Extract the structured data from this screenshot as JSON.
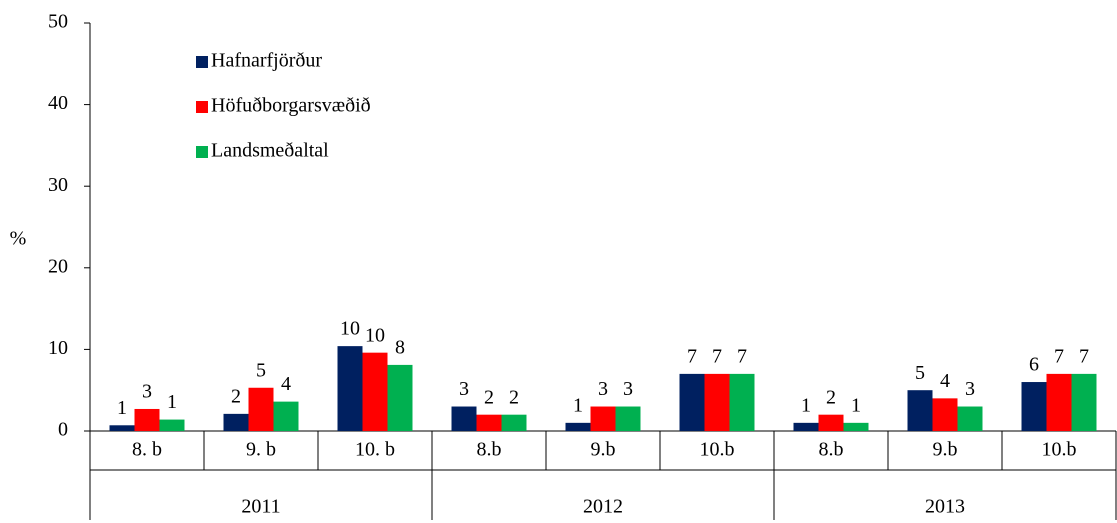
{
  "chart_data": {
    "type": "bar",
    "y_label": "%",
    "categories": [
      "8. b",
      "9. b",
      "10. b",
      "8.b",
      "9.b",
      "10.b",
      "8.b",
      "9.b",
      "10.b"
    ],
    "category_groups": [
      "2011",
      "2012",
      "2013"
    ],
    "series": [
      {
        "name": "Hafnarfjörður",
        "color": "#002060",
        "values": [
          0.7,
          2.1,
          10.4,
          3,
          1,
          7,
          1,
          5,
          6
        ],
        "value_labels": [
          "1",
          "2",
          "10",
          "3",
          "1",
          "7",
          "1",
          "5",
          "6"
        ]
      },
      {
        "name": "Höfuðborgarsvæðið",
        "color": "#ff0000",
        "values": [
          2.7,
          5.3,
          9.6,
          2,
          3,
          7,
          2,
          4,
          7
        ],
        "value_labels": [
          "3",
          "5",
          "10",
          "2",
          "3",
          "7",
          "2",
          "4",
          "7"
        ]
      },
      {
        "name": "Landsmeðaltal",
        "color": "#00b050",
        "values": [
          1.4,
          3.6,
          8.1,
          2,
          3,
          7,
          1,
          3,
          7
        ],
        "value_labels": [
          "1",
          "4",
          "8",
          "2",
          "3",
          "7",
          "1",
          "3",
          "7"
        ]
      }
    ],
    "ylim": [
      0,
      50
    ],
    "yticks": [
      0,
      10,
      20,
      30,
      40,
      50
    ],
    "grid": false,
    "legend": "upper left"
  }
}
